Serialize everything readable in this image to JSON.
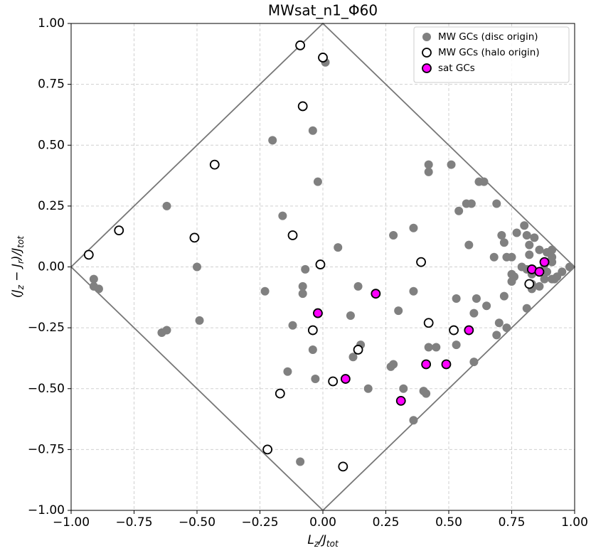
{
  "chart_data": {
    "type": "scatter",
    "title": "MWsat_n1_Φ60",
    "x_label": [
      "L",
      "z",
      "/J",
      "tot"
    ],
    "y_label": [
      "(J",
      "z",
      " − J",
      "r",
      ")/J",
      "tot"
    ],
    "xlim": [
      -1,
      1
    ],
    "ylim": [
      -1,
      1
    ],
    "xticks": [
      {
        "value": -1,
        "label": "−1.00"
      },
      {
        "value": -0.75,
        "label": "−0.75"
      },
      {
        "value": -0.5,
        "label": "−0.50"
      },
      {
        "value": -0.25,
        "label": "−0.25"
      },
      {
        "value": 0,
        "label": "0.00"
      },
      {
        "value": 0.25,
        "label": "0.25"
      },
      {
        "value": 0.5,
        "label": "0.50"
      },
      {
        "value": 0.75,
        "label": "0.75"
      },
      {
        "value": 1,
        "label": "1.00"
      }
    ],
    "yticks": [
      {
        "value": -1,
        "label": "−1.00"
      },
      {
        "value": -0.75,
        "label": "−0.75"
      },
      {
        "value": -0.5,
        "label": "−0.50"
      },
      {
        "value": -0.25,
        "label": "−0.25"
      },
      {
        "value": 0,
        "label": "0.00"
      },
      {
        "value": 0.25,
        "label": "0.25"
      },
      {
        "value": 0.5,
        "label": "0.50"
      },
      {
        "value": 0.75,
        "label": "0.75"
      },
      {
        "value": 1,
        "label": "1.00"
      }
    ],
    "grid": true,
    "legend": "upper right",
    "series": [
      {
        "name": "MW GCs (disc origin)",
        "color": "#808080",
        "edgecolor": "#808080",
        "x": [
          0.01,
          -0.04,
          -0.2,
          -0.02,
          -0.62,
          -0.16,
          0.06,
          -0.5,
          -0.07,
          -0.91,
          -0.91,
          -0.89,
          -0.08,
          -0.08,
          -0.23,
          -0.49,
          -0.62,
          -0.64,
          -0.12,
          -0.04,
          -0.14,
          -0.03,
          0.14,
          0.11,
          0.15,
          0.12,
          0.18,
          0.28,
          0.36,
          0.36,
          0.3,
          0.27,
          0.28,
          0.32,
          0.36,
          0.4,
          0.41,
          0.42,
          0.42,
          0.51,
          0.54,
          0.57,
          0.59,
          0.58,
          0.62,
          0.64,
          0.69,
          0.42,
          0.45,
          0.53,
          0.53,
          0.6,
          0.61,
          0.65,
          0.6,
          0.7,
          0.69,
          0.73,
          0.72,
          0.71,
          0.72,
          0.73,
          0.68,
          0.75,
          0.75,
          0.76,
          0.75,
          0.77,
          0.8,
          0.81,
          0.84,
          0.82,
          0.82,
          0.86,
          0.79,
          0.81,
          0.83,
          0.81,
          0.83,
          0.83,
          0.86,
          0.88,
          0.89,
          0.91,
          0.91,
          0.91,
          0.89,
          0.91,
          0.92,
          0.93,
          0.95,
          0.98,
          -0.09,
          0.88
        ],
        "y": [
          0.84,
          0.56,
          0.52,
          0.35,
          0.25,
          0.21,
          0.08,
          0.0,
          -0.01,
          -0.05,
          -0.08,
          -0.09,
          -0.08,
          -0.11,
          -0.1,
          -0.22,
          -0.26,
          -0.27,
          -0.24,
          -0.34,
          -0.43,
          -0.46,
          -0.08,
          -0.2,
          -0.32,
          -0.37,
          -0.5,
          0.13,
          0.16,
          -0.1,
          -0.18,
          -0.41,
          -0.4,
          -0.5,
          -0.63,
          -0.51,
          -0.52,
          0.39,
          0.42,
          0.42,
          0.23,
          0.26,
          0.26,
          0.09,
          0.35,
          0.35,
          0.26,
          -0.33,
          -0.33,
          -0.32,
          -0.13,
          -0.19,
          -0.13,
          -0.16,
          -0.39,
          -0.23,
          -0.28,
          -0.25,
          -0.12,
          0.13,
          0.1,
          0.04,
          0.04,
          0.04,
          -0.06,
          -0.04,
          -0.03,
          0.14,
          0.17,
          0.13,
          0.12,
          0.09,
          0.05,
          0.07,
          0.0,
          -0.01,
          -0.03,
          -0.17,
          -0.07,
          -0.09,
          -0.08,
          -0.05,
          0.06,
          0.04,
          0.07,
          0.02,
          -0.02,
          -0.05,
          -0.05,
          -0.04,
          -0.02,
          0.0,
          -0.8,
          0.01
        ]
      },
      {
        "name": "MW GCs (halo origin)",
        "color": "#ffffff",
        "edgecolor": "#000000",
        "x": [
          -0.09,
          0.0,
          -0.08,
          -0.43,
          -0.81,
          -0.93,
          -0.51,
          -0.12,
          -0.01,
          0.39,
          0.82,
          0.42,
          -0.04,
          0.52,
          0.14,
          0.04,
          -0.17,
          -0.22,
          0.08
        ],
        "y": [
          0.91,
          0.86,
          0.66,
          0.42,
          0.15,
          0.05,
          0.12,
          0.13,
          0.01,
          0.02,
          -0.07,
          -0.23,
          -0.26,
          -0.26,
          -0.34,
          -0.47,
          -0.52,
          -0.75,
          -0.82
        ]
      },
      {
        "name": "sat GCs",
        "color": "#ff00ff",
        "edgecolor": "#000000",
        "x": [
          -0.02,
          0.21,
          0.09,
          0.31,
          0.41,
          0.49,
          0.58,
          0.83,
          0.86,
          0.88
        ],
        "y": [
          -0.19,
          -0.11,
          -0.46,
          -0.55,
          -0.4,
          -0.4,
          -0.26,
          -0.01,
          -0.02,
          0.02
        ]
      }
    ]
  }
}
